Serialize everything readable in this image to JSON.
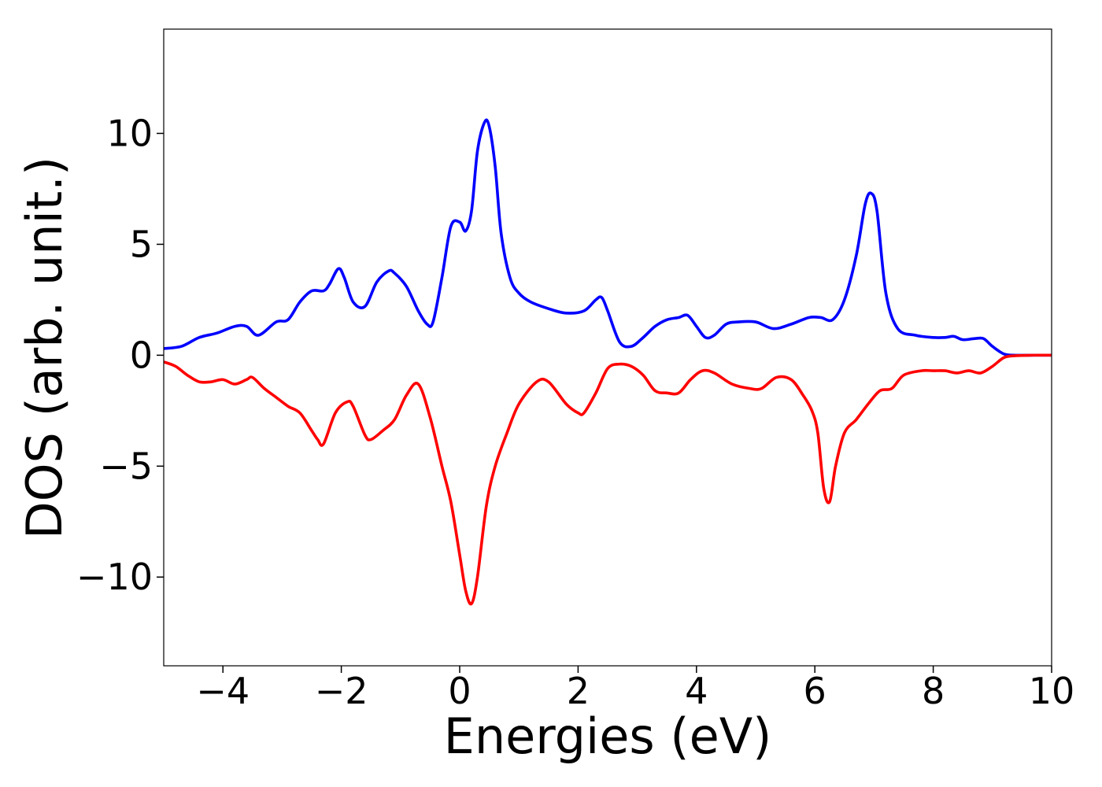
{
  "chart_data": {
    "type": "line",
    "xlabel": "Energies (eV)",
    "ylabel": "DOS (arb. unit.)",
    "xlim": [
      -5,
      10
    ],
    "ylim": [
      -14,
      14.7
    ],
    "grid": false,
    "xticks": [
      -4,
      -2,
      0,
      2,
      4,
      6,
      8,
      10
    ],
    "xtick_labels": [
      "−4",
      "−2",
      "0",
      "2",
      "4",
      "6",
      "8",
      "10"
    ],
    "yticks": [
      -10,
      -5,
      0,
      5,
      10
    ],
    "ytick_labels": [
      "−10",
      "−5",
      "0",
      "5",
      "10"
    ],
    "series": [
      {
        "color": "#0000ff",
        "x": [
          -5.0,
          -4.7,
          -4.4,
          -4.1,
          -3.8,
          -3.6,
          -3.4,
          -3.1,
          -2.9,
          -2.7,
          -2.5,
          -2.3,
          -2.2,
          -2.05,
          -1.95,
          -1.8,
          -1.6,
          -1.4,
          -1.2,
          -1.1,
          -0.9,
          -0.7,
          -0.55,
          -0.45,
          -0.3,
          -0.15,
          0.0,
          0.1,
          0.2,
          0.3,
          0.42,
          0.5,
          0.6,
          0.7,
          0.85,
          1.0,
          1.2,
          1.5,
          1.8,
          2.1,
          2.3,
          2.4,
          2.5,
          2.7,
          2.9,
          3.1,
          3.3,
          3.5,
          3.7,
          3.85,
          4.0,
          4.15,
          4.3,
          4.5,
          4.7,
          5.0,
          5.3,
          5.6,
          5.9,
          6.1,
          6.3,
          6.5,
          6.7,
          6.85,
          6.95,
          7.05,
          7.2,
          7.4,
          7.7,
          8.0,
          8.2,
          8.35,
          8.5,
          8.7,
          8.85,
          9.0,
          9.2,
          9.4,
          9.7,
          10.0
        ],
        "values": [
          0.3,
          0.4,
          0.8,
          1.0,
          1.3,
          1.3,
          0.9,
          1.5,
          1.6,
          2.4,
          2.9,
          2.9,
          3.2,
          3.9,
          3.5,
          2.4,
          2.2,
          3.3,
          3.8,
          3.7,
          3.1,
          2.0,
          1.4,
          1.5,
          3.5,
          5.8,
          6.0,
          5.6,
          6.5,
          9.2,
          10.5,
          10.3,
          8.5,
          5.5,
          3.5,
          2.8,
          2.4,
          2.1,
          1.9,
          2.0,
          2.5,
          2.6,
          2.0,
          0.6,
          0.4,
          0.8,
          1.3,
          1.6,
          1.7,
          1.8,
          1.3,
          0.8,
          0.9,
          1.4,
          1.5,
          1.5,
          1.2,
          1.4,
          1.7,
          1.7,
          1.6,
          2.5,
          4.5,
          6.8,
          7.3,
          6.5,
          2.8,
          1.2,
          0.9,
          0.8,
          0.8,
          0.85,
          0.7,
          0.75,
          0.75,
          0.4,
          0.05,
          0.0,
          0.0,
          0.0
        ]
      },
      {
        "color": "#ff0000",
        "x": [
          -5.0,
          -4.8,
          -4.6,
          -4.4,
          -4.2,
          -4.0,
          -3.8,
          -3.6,
          -3.5,
          -3.3,
          -3.1,
          -2.9,
          -2.7,
          -2.5,
          -2.4,
          -2.3,
          -2.1,
          -1.9,
          -1.8,
          -1.6,
          -1.5,
          -1.3,
          -1.1,
          -0.9,
          -0.7,
          -0.5,
          -0.3,
          -0.15,
          0.0,
          0.1,
          0.2,
          0.3,
          0.45,
          0.6,
          0.8,
          1.0,
          1.3,
          1.5,
          1.8,
          2.0,
          2.1,
          2.3,
          2.5,
          2.7,
          2.9,
          3.1,
          3.3,
          3.5,
          3.7,
          3.9,
          4.1,
          4.3,
          4.6,
          4.9,
          5.1,
          5.35,
          5.6,
          5.8,
          5.95,
          6.05,
          6.15,
          6.25,
          6.35,
          6.5,
          6.7,
          6.9,
          7.1,
          7.3,
          7.5,
          7.8,
          8.0,
          8.2,
          8.4,
          8.6,
          8.8,
          9.0,
          9.2,
          9.4,
          9.7,
          10.0
        ],
        "values": [
          -0.3,
          -0.5,
          -0.9,
          -1.2,
          -1.2,
          -1.1,
          -1.3,
          -1.1,
          -1.0,
          -1.5,
          -1.9,
          -2.3,
          -2.6,
          -3.4,
          -3.8,
          -4.0,
          -2.6,
          -2.1,
          -2.3,
          -3.6,
          -3.8,
          -3.4,
          -2.9,
          -1.8,
          -1.3,
          -2.8,
          -5.0,
          -6.6,
          -9.0,
          -10.6,
          -11.2,
          -10.0,
          -6.8,
          -5.0,
          -3.5,
          -2.2,
          -1.2,
          -1.2,
          -2.2,
          -2.6,
          -2.6,
          -1.7,
          -0.6,
          -0.4,
          -0.5,
          -0.9,
          -1.6,
          -1.7,
          -1.7,
          -1.1,
          -0.7,
          -0.8,
          -1.3,
          -1.5,
          -1.5,
          -1.0,
          -1.1,
          -1.8,
          -2.5,
          -3.5,
          -6.0,
          -6.6,
          -5.0,
          -3.5,
          -2.9,
          -2.2,
          -1.6,
          -1.5,
          -0.9,
          -0.7,
          -0.7,
          -0.7,
          -0.8,
          -0.7,
          -0.8,
          -0.5,
          -0.1,
          -0.02,
          0.0,
          0.0
        ]
      }
    ]
  }
}
